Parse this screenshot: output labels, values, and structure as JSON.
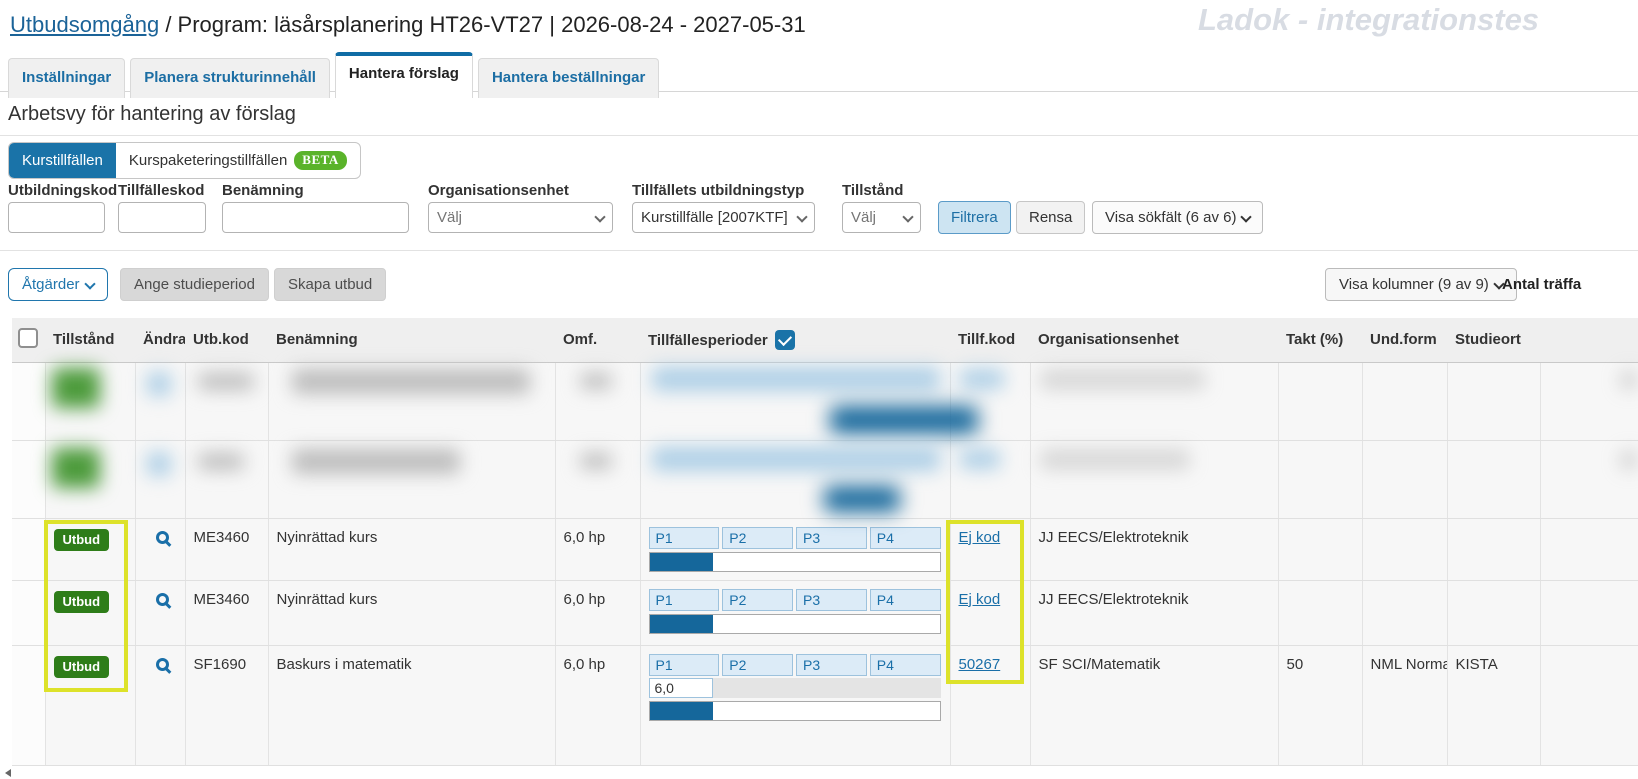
{
  "header": {
    "breadcrumb_link": "Utbudsomgång",
    "breadcrumb_text": " / Program: läsårsplanering HT26-VT27 | 2026-08-24 - 2027-05-31",
    "watermark": "Ladok - integrationstes"
  },
  "tabs": [
    {
      "label": "Inställningar",
      "active": false
    },
    {
      "label": "Planera strukturinnehåll",
      "active": false
    },
    {
      "label": "Hantera förslag",
      "active": true
    },
    {
      "label": "Hantera beställningar",
      "active": false
    }
  ],
  "content": {
    "heading": "Arbetsvy för hantering av förslag"
  },
  "view_toggle": {
    "kurstillfallen": "Kurstillfällen",
    "kurspaketeringstillfallen": "Kurspaketeringstillfällen",
    "beta_badge": "BETA"
  },
  "filters": {
    "utbildningskod_label": "Utbildningskod",
    "utbildningskod_value": "",
    "tillfalleskod_label": "Tillfälleskod",
    "tillfalleskod_value": "",
    "benamning_label": "Benämning",
    "benamning_value": "",
    "organisationsenhet_label": "Organisationsenhet",
    "organisationsenhet_value": "Välj",
    "utbildningstyp_label": "Tillfällets utbildningstyp",
    "utbildningstyp_value": "Kurstillfälle [2007KTF]",
    "tillstand_label": "Tillstånd",
    "tillstand_value": "Välj",
    "filtrera_button": "Filtrera",
    "rensa_button": "Rensa",
    "visa_sokfalt_button": "Visa sökfält (6 av 6)"
  },
  "toolbar": {
    "atgarder_button": "Åtgärder",
    "ange_studieperiod_button": "Ange studieperiod",
    "skapa_utbud_button": "Skapa utbud",
    "visa_kolumner_button": "Visa kolumner (9 av 9)",
    "antal_traffar_label": "Antal träffa"
  },
  "icons": {
    "andra_icon": "magnifier",
    "dropdown_icon": "chevron-down",
    "checked_icon": "checkmark"
  },
  "colors": {
    "accent_blue": "#1a73a8",
    "badge_green": "#2e7d19",
    "beta_green": "#5ab32a",
    "highlight_yellow": "#dde22a",
    "progress_blue": "#15679b"
  },
  "table": {
    "headers": {
      "tillstand": "Tillstånd",
      "andra": "Ändra",
      "utb_kod": "Utb.kod",
      "benamning": "Benämning",
      "omf": "Omf.",
      "tillfallesperioder": "Tillfällesperioder",
      "tillf_kod": "Tillf.kod",
      "organisationsenhet": "Organisationsenhet",
      "takt": "Takt (%)",
      "und_form": "Und.form",
      "studieort": "Studieort"
    },
    "rows": [
      {
        "redacted": true
      },
      {
        "redacted": true
      },
      {
        "status": "Utbud",
        "utb_kod": "ME3460",
        "benamning": "Nyinrättad kurs",
        "omf": "6,0 hp",
        "periods": [
          "P1",
          "P2",
          "P3",
          "P4"
        ],
        "progress_pct": 22,
        "tillf_kod": "Ej kod",
        "organisationsenhet": "JJ EECS/Elektroteknik",
        "takt": "",
        "und_form": "",
        "studieort": ""
      },
      {
        "status": "Utbud",
        "utb_kod": "ME3460",
        "benamning": "Nyinrättad kurs",
        "omf": "6,0 hp",
        "periods": [
          "P1",
          "P2",
          "P3",
          "P4"
        ],
        "progress_pct": 22,
        "tillf_kod": "Ej kod",
        "organisationsenhet": "JJ EECS/Elektroteknik",
        "takt": "",
        "und_form": "",
        "studieort": ""
      },
      {
        "status": "Utbud",
        "utb_kod": "SF1690",
        "benamning": "Baskurs i matematik",
        "omf": "6,0 hp",
        "periods": [
          "P1",
          "P2",
          "P3",
          "P4"
        ],
        "period_omf_value": "6,0",
        "progress_pct": 22,
        "tillf_kod": "50267",
        "organisationsenhet": "SF SCI/Matematik",
        "takt": "50",
        "und_form": "NML Normal",
        "studieort": "KISTA"
      }
    ]
  }
}
